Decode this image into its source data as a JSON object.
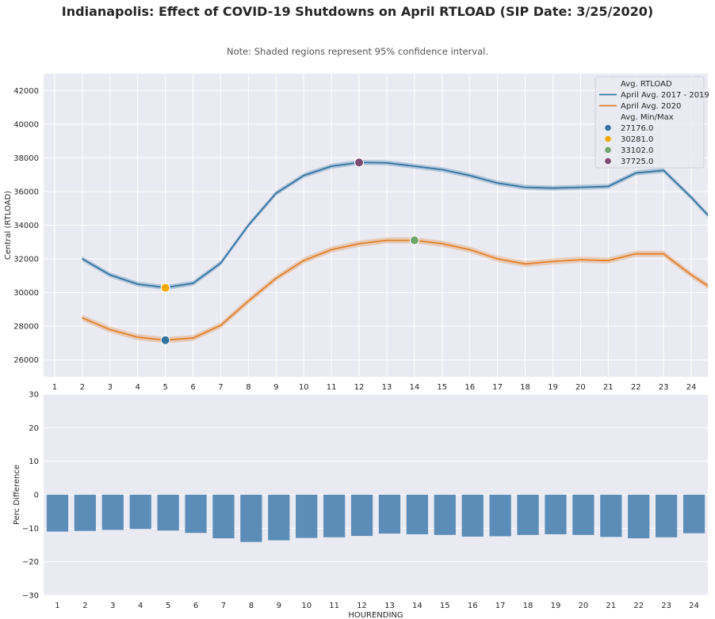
{
  "figure": {
    "title": "Indianapolis: Effect of COVID-19 Shutdowns on April RTLOAD (SIP Date: 3/25/2020)",
    "subtitle": "Note: Shaded regions represent 95% confidence interval."
  },
  "chart_data": [
    {
      "type": "line",
      "title": "",
      "xlabel": "",
      "ylabel": "Central (RTLOAD)",
      "x": [
        1,
        2,
        3,
        4,
        5,
        6,
        7,
        8,
        9,
        10,
        11,
        12,
        13,
        14,
        15,
        16,
        17,
        18,
        19,
        20,
        21,
        22,
        23,
        24
      ],
      "xlim": [
        0.6,
        24.6
      ],
      "ylim": [
        25000,
        43000
      ],
      "yticks": [
        26000,
        28000,
        30000,
        32000,
        34000,
        36000,
        38000,
        40000,
        42000
      ],
      "grid": true,
      "legend_position": "top-right",
      "series": [
        {
          "name": "April Avg. 2017 - 2019",
          "color": "#3274a1",
          "x": [
            2,
            3,
            4,
            5,
            6,
            7,
            8,
            9,
            10,
            11,
            12,
            13,
            14,
            15,
            16,
            17,
            18,
            19,
            20,
            21,
            22,
            23,
            24,
            24.6
          ],
          "values": [
            32000,
            31050,
            30500,
            30300,
            30550,
            31750,
            34000,
            35900,
            36950,
            37500,
            37725,
            37700,
            37500,
            37300,
            36950,
            36500,
            36250,
            36200,
            36250,
            36300,
            37100,
            37250,
            35650,
            34600
          ],
          "ci": 150
        },
        {
          "name": "April Avg. 2020",
          "color": "#e1812c",
          "x": [
            2,
            3,
            4,
            5,
            6,
            7,
            8,
            9,
            10,
            11,
            12,
            13,
            14,
            15,
            16,
            17,
            18,
            19,
            20,
            21,
            22,
            23,
            24,
            24.6
          ],
          "values": [
            28500,
            27800,
            27350,
            27176,
            27300,
            28050,
            29500,
            30850,
            31900,
            32550,
            32900,
            33100,
            33102,
            32900,
            32550,
            32000,
            31700,
            31850,
            31950,
            31900,
            32300,
            32300,
            31050,
            30400
          ],
          "ci": 180
        }
      ],
      "legend": {
        "line_title": "Avg. RTLOAD",
        "marker_title": "Avg. Min/Max"
      },
      "markers": [
        {
          "label": "27176.0",
          "x": 5,
          "y": 27176,
          "color": "#3274a1"
        },
        {
          "label": "30281.0",
          "x": 5,
          "y": 30281,
          "color": "#f5a800"
        },
        {
          "label": "33102.0",
          "x": 14,
          "y": 33102,
          "color": "#6ea66b"
        },
        {
          "label": "37725.0",
          "x": 12,
          "y": 37725,
          "color": "#7b4b73"
        }
      ]
    },
    {
      "type": "bar",
      "title": "",
      "xlabel": "HOURENDING",
      "ylabel": "Perc Difference",
      "categories": [
        "1",
        "2",
        "3",
        "4",
        "5",
        "6",
        "7",
        "8",
        "9",
        "10",
        "11",
        "12",
        "13",
        "14",
        "15",
        "16",
        "17",
        "18",
        "19",
        "20",
        "21",
        "22",
        "23",
        "24"
      ],
      "values": [
        -11.0,
        -10.8,
        -10.5,
        -10.2,
        -10.7,
        -11.4,
        -13.0,
        -14.1,
        -13.6,
        -12.9,
        -12.7,
        -12.3,
        -11.6,
        -11.8,
        -12.0,
        -12.5,
        -12.4,
        -12.0,
        -11.8,
        -12.0,
        -12.6,
        -13.0,
        -12.7,
        -11.5
      ],
      "ylim": [
        -30,
        30
      ],
      "yticks": [
        -30,
        -20,
        -10,
        0,
        10,
        20,
        30
      ],
      "color": "#5b8db8",
      "grid": true
    }
  ]
}
